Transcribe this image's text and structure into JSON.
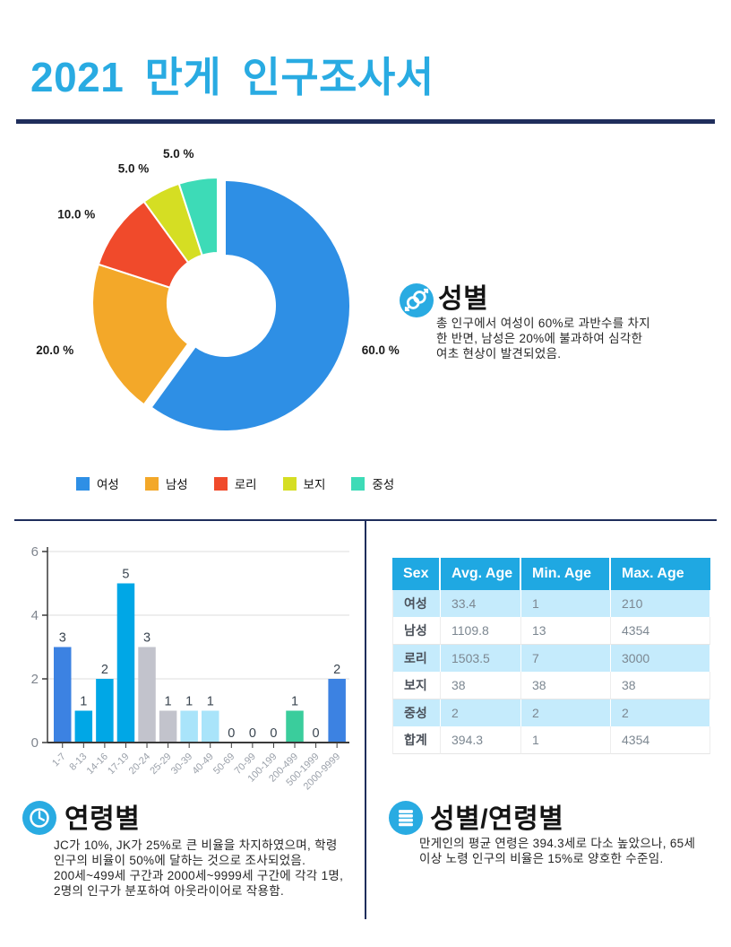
{
  "page": {
    "title": "2021 만게 인구조사서"
  },
  "chart_data": [
    {
      "type": "pie",
      "donut": true,
      "labels": [
        "여성",
        "남성",
        "로리",
        "보지",
        "중성"
      ],
      "values": [
        60.0,
        20.0,
        10.0,
        5.0,
        5.0
      ],
      "unit": "%",
      "colors": [
        "#2E8FE5",
        "#F3A829",
        "#F04A2B",
        "#D5DE23",
        "#3DDBB7"
      ],
      "exploded_slice": "여성",
      "legend_position": "bottom",
      "slice_label_format": "0.0 %"
    },
    {
      "type": "bar",
      "categories": [
        "1-7",
        "8-13",
        "14-16",
        "17-19",
        "20-24",
        "25-29",
        "30-39",
        "40-49",
        "50-69",
        "70-99",
        "100-199",
        "200-499",
        "500-1999",
        "2000-9999"
      ],
      "values": [
        3,
        1,
        2,
        5,
        3,
        1,
        1,
        1,
        0,
        0,
        0,
        1,
        0,
        2
      ],
      "bar_colors": [
        "#3C82E2",
        "#00A7E6",
        "#00A7E6",
        "#00A7E6",
        "#C2C3CC",
        "#C2C3CC",
        "#A9E4FA",
        "#A9E4FA",
        "#A9E4FA",
        "#A9E4FA",
        "#A9E4FA",
        "#3ACD9C",
        "#3ACD9C",
        "#3C82E2"
      ],
      "ylim": [
        0,
        6
      ],
      "yticks": [
        0,
        2,
        4,
        6
      ],
      "grid": true,
      "value_labels": true,
      "xlabel": "",
      "ylabel": ""
    }
  ],
  "table": {
    "headers": [
      "Sex",
      "Avg. Age",
      "Min. Age",
      "Max. Age"
    ],
    "rows": [
      [
        "여성",
        "33.4",
        "1",
        "210"
      ],
      [
        "남성",
        "1109.8",
        "13",
        "4354"
      ],
      [
        "로리",
        "1503.5",
        "7",
        "3000"
      ],
      [
        "보지",
        "38",
        "38",
        "38"
      ],
      [
        "중성",
        "2",
        "2",
        "2"
      ],
      [
        "합계",
        "394.3",
        "1",
        "4354"
      ]
    ]
  },
  "sections": {
    "gender": {
      "title": "성별",
      "body": "총 인구에서 여성이 60%로 과반수를 차지\n한 반면, 남성은 20%에 불과하여 심각한\n여초 현상이 발견되었음."
    },
    "age": {
      "title": "연령별",
      "body": "JC가 10%, JK가 25%로 큰 비율을 차지하였으며, 학령\n인구의 비율이 50%에 달하는 것으로 조사되었음.\n200세~499세 구간과 2000세~9999세 구간에 각각 1명,\n2명의 인구가 분포하여 아웃라이어로 작용함."
    },
    "gender_age": {
      "title": "성별/연령별",
      "body": "만게인의 평균 연령은 394.3세로 다소 높았으나, 65세\n이상 노령 인구의 비율은 15%로 양호한 수준임."
    }
  },
  "accent_colors": {
    "title_blue": "#29ABE2",
    "navy": "#1F2E5C",
    "table_header": "#1FA8E2",
    "table_alt_row": "#C5EBFC"
  }
}
